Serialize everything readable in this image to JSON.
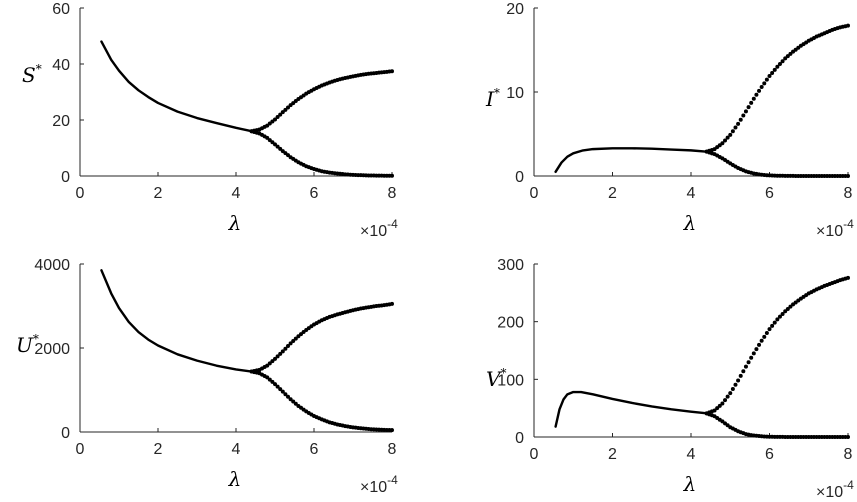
{
  "chart_data": [
    {
      "type": "line",
      "xlabel": "λ",
      "ylabel": "S",
      "ylabel_superscript": "*",
      "x_multiplier": "×10",
      "x_multiplier_exponent": "-4",
      "xlim": [
        0,
        8
      ],
      "ylim": [
        0,
        60
      ],
      "xticks": [
        0,
        2,
        4,
        6,
        8
      ],
      "yticks": [
        0,
        20,
        40,
        60
      ],
      "xtick_labels": [
        "0",
        "2",
        "4",
        "6",
        "8"
      ],
      "ytick_labels": [
        "0",
        "20",
        "40",
        "60"
      ],
      "grid": false,
      "series": [
        {
          "style": "solid",
          "x": [
            0.55,
            0.8,
            1.0,
            1.25,
            1.5,
            1.75,
            2.0,
            2.5,
            3.0,
            3.5,
            4.0,
            4.4
          ],
          "y": [
            48,
            41.5,
            37.6,
            33.6,
            30.6,
            28.2,
            26.1,
            23.0,
            20.7,
            18.9,
            17.2,
            16.0
          ]
        },
        {
          "style": "dotted",
          "x": [
            4.4,
            4.6,
            4.8,
            5.0,
            5.2,
            5.4,
            5.6,
            5.8,
            6.0,
            6.2,
            6.4,
            6.6,
            6.8,
            7.0,
            7.2,
            7.4,
            7.6,
            7.8,
            8.0
          ],
          "y": [
            16.0,
            16.6,
            18.0,
            20.2,
            22.8,
            25.3,
            27.5,
            29.4,
            31.0,
            32.3,
            33.4,
            34.3,
            35.0,
            35.6,
            36.1,
            36.5,
            36.8,
            37.1,
            37.4
          ]
        },
        {
          "style": "dotted",
          "x": [
            4.4,
            4.6,
            4.8,
            5.0,
            5.2,
            5.4,
            5.6,
            5.8,
            6.0,
            6.2,
            6.4,
            6.6,
            6.8,
            7.0,
            7.2,
            7.4,
            7.6,
            7.8,
            8.0
          ],
          "y": [
            16.0,
            15.2,
            13.6,
            11.3,
            8.9,
            6.7,
            4.9,
            3.5,
            2.5,
            1.7,
            1.2,
            0.9,
            0.6,
            0.4,
            0.3,
            0.2,
            0.15,
            0.1,
            0.1
          ]
        }
      ]
    },
    {
      "type": "line",
      "xlabel": "λ",
      "ylabel": "I",
      "ylabel_superscript": "*",
      "x_multiplier": "×10",
      "x_multiplier_exponent": "-4",
      "xlim": [
        0,
        8
      ],
      "ylim": [
        0,
        20
      ],
      "xticks": [
        0,
        2,
        4,
        6,
        8
      ],
      "yticks": [
        0,
        10,
        20
      ],
      "xtick_labels": [
        "0",
        "2",
        "4",
        "6",
        "8"
      ],
      "ytick_labels": [
        "0",
        "10",
        "20"
      ],
      "grid": false,
      "series": [
        {
          "style": "solid",
          "x": [
            0.55,
            0.7,
            0.85,
            1.0,
            1.25,
            1.5,
            2.0,
            2.5,
            3.0,
            3.5,
            4.0,
            4.4
          ],
          "y": [
            0.5,
            1.6,
            2.3,
            2.7,
            3.05,
            3.2,
            3.3,
            3.3,
            3.25,
            3.15,
            3.05,
            2.9
          ]
        },
        {
          "style": "dotted",
          "x": [
            4.4,
            4.6,
            4.8,
            5.0,
            5.2,
            5.4,
            5.6,
            5.8,
            6.0,
            6.2,
            6.4,
            6.6,
            6.8,
            7.0,
            7.2,
            7.4,
            7.6,
            7.8,
            8.0
          ],
          "y": [
            2.9,
            3.2,
            3.9,
            4.9,
            6.2,
            7.7,
            9.2,
            10.6,
            11.9,
            13.0,
            14.0,
            14.8,
            15.5,
            16.1,
            16.6,
            17.0,
            17.4,
            17.7,
            17.9
          ]
        },
        {
          "style": "dotted",
          "x": [
            4.4,
            4.6,
            4.8,
            5.0,
            5.2,
            5.4,
            5.6,
            5.8,
            6.0,
            6.2,
            6.4,
            6.6,
            6.8,
            7.0,
            7.2,
            7.4,
            7.6,
            7.8,
            8.0
          ],
          "y": [
            2.9,
            2.6,
            2.1,
            1.5,
            0.95,
            0.55,
            0.3,
            0.15,
            0.07,
            0.03,
            0.02,
            0.01,
            0,
            0,
            0,
            0,
            0,
            0,
            0
          ]
        }
      ]
    },
    {
      "type": "line",
      "xlabel": "λ",
      "ylabel": "U",
      "ylabel_superscript": "*",
      "x_multiplier": "×10",
      "x_multiplier_exponent": "-4",
      "xlim": [
        0,
        8
      ],
      "ylim": [
        0,
        4000
      ],
      "xticks": [
        0,
        2,
        4,
        6,
        8
      ],
      "yticks": [
        0,
        2000,
        4000
      ],
      "xtick_labels": [
        "0",
        "2",
        "4",
        "6",
        "8"
      ],
      "ytick_labels": [
        "0",
        "2000",
        "4000"
      ],
      "grid": false,
      "series": [
        {
          "style": "solid",
          "x": [
            0.55,
            0.8,
            1.0,
            1.25,
            1.5,
            1.75,
            2.0,
            2.5,
            3.0,
            3.5,
            4.0,
            4.4
          ],
          "y": [
            3850,
            3300,
            2950,
            2620,
            2380,
            2200,
            2060,
            1850,
            1700,
            1580,
            1490,
            1440
          ]
        },
        {
          "style": "dotted",
          "x": [
            4.4,
            4.6,
            4.8,
            5.0,
            5.2,
            5.4,
            5.6,
            5.8,
            6.0,
            6.2,
            6.4,
            6.6,
            6.8,
            7.0,
            7.2,
            7.4,
            7.6,
            7.8,
            8.0
          ],
          "y": [
            1440,
            1480,
            1580,
            1740,
            1920,
            2110,
            2280,
            2430,
            2560,
            2660,
            2740,
            2800,
            2850,
            2900,
            2940,
            2970,
            3000,
            3020,
            3050
          ]
        },
        {
          "style": "dotted",
          "x": [
            4.4,
            4.6,
            4.8,
            5.0,
            5.2,
            5.4,
            5.6,
            5.8,
            6.0,
            6.2,
            6.4,
            6.6,
            6.8,
            7.0,
            7.2,
            7.4,
            7.6,
            7.8,
            8.0
          ],
          "y": [
            1440,
            1400,
            1300,
            1140,
            960,
            780,
            620,
            490,
            380,
            300,
            230,
            180,
            140,
            110,
            90,
            70,
            60,
            50,
            45
          ]
        }
      ]
    },
    {
      "type": "line",
      "xlabel": "λ",
      "ylabel": "V",
      "ylabel_superscript": "*",
      "x_multiplier": "×10",
      "x_multiplier_exponent": "-4",
      "xlim": [
        0,
        8
      ],
      "ylim": [
        0,
        300
      ],
      "xticks": [
        0,
        2,
        4,
        6,
        8
      ],
      "yticks": [
        0,
        100,
        200,
        300
      ],
      "xtick_labels": [
        "0",
        "2",
        "4",
        "6",
        "8"
      ],
      "ytick_labels": [
        "0",
        "100",
        "200",
        "300"
      ],
      "grid": false,
      "series": [
        {
          "style": "solid",
          "x": [
            0.55,
            0.65,
            0.75,
            0.85,
            1.0,
            1.2,
            1.5,
            2.0,
            2.5,
            3.0,
            3.5,
            4.0,
            4.4
          ],
          "y": [
            18,
            48,
            65,
            74,
            78,
            78,
            74,
            66,
            59,
            53,
            48,
            44,
            41
          ]
        },
        {
          "style": "dotted",
          "x": [
            4.4,
            4.6,
            4.8,
            5.0,
            5.2,
            5.4,
            5.6,
            5.8,
            6.0,
            6.2,
            6.4,
            6.6,
            6.8,
            7.0,
            7.2,
            7.4,
            7.6,
            7.8,
            8.0
          ],
          "y": [
            41,
            46,
            58,
            76,
            98,
            122,
            145,
            167,
            187,
            204,
            218,
            230,
            240,
            249,
            256,
            262,
            267,
            272,
            276
          ]
        },
        {
          "style": "dotted",
          "x": [
            4.4,
            4.6,
            4.8,
            5.0,
            5.2,
            5.4,
            5.6,
            5.8,
            6.0,
            6.2,
            6.4,
            6.6,
            6.8,
            7.0,
            7.2,
            7.4,
            7.6,
            7.8,
            8.0
          ],
          "y": [
            41,
            36,
            27,
            17,
            10,
            5,
            2.5,
            1.2,
            0.5,
            0.2,
            0.1,
            0,
            0,
            0,
            0,
            0,
            0,
            0,
            0
          ]
        }
      ]
    }
  ]
}
